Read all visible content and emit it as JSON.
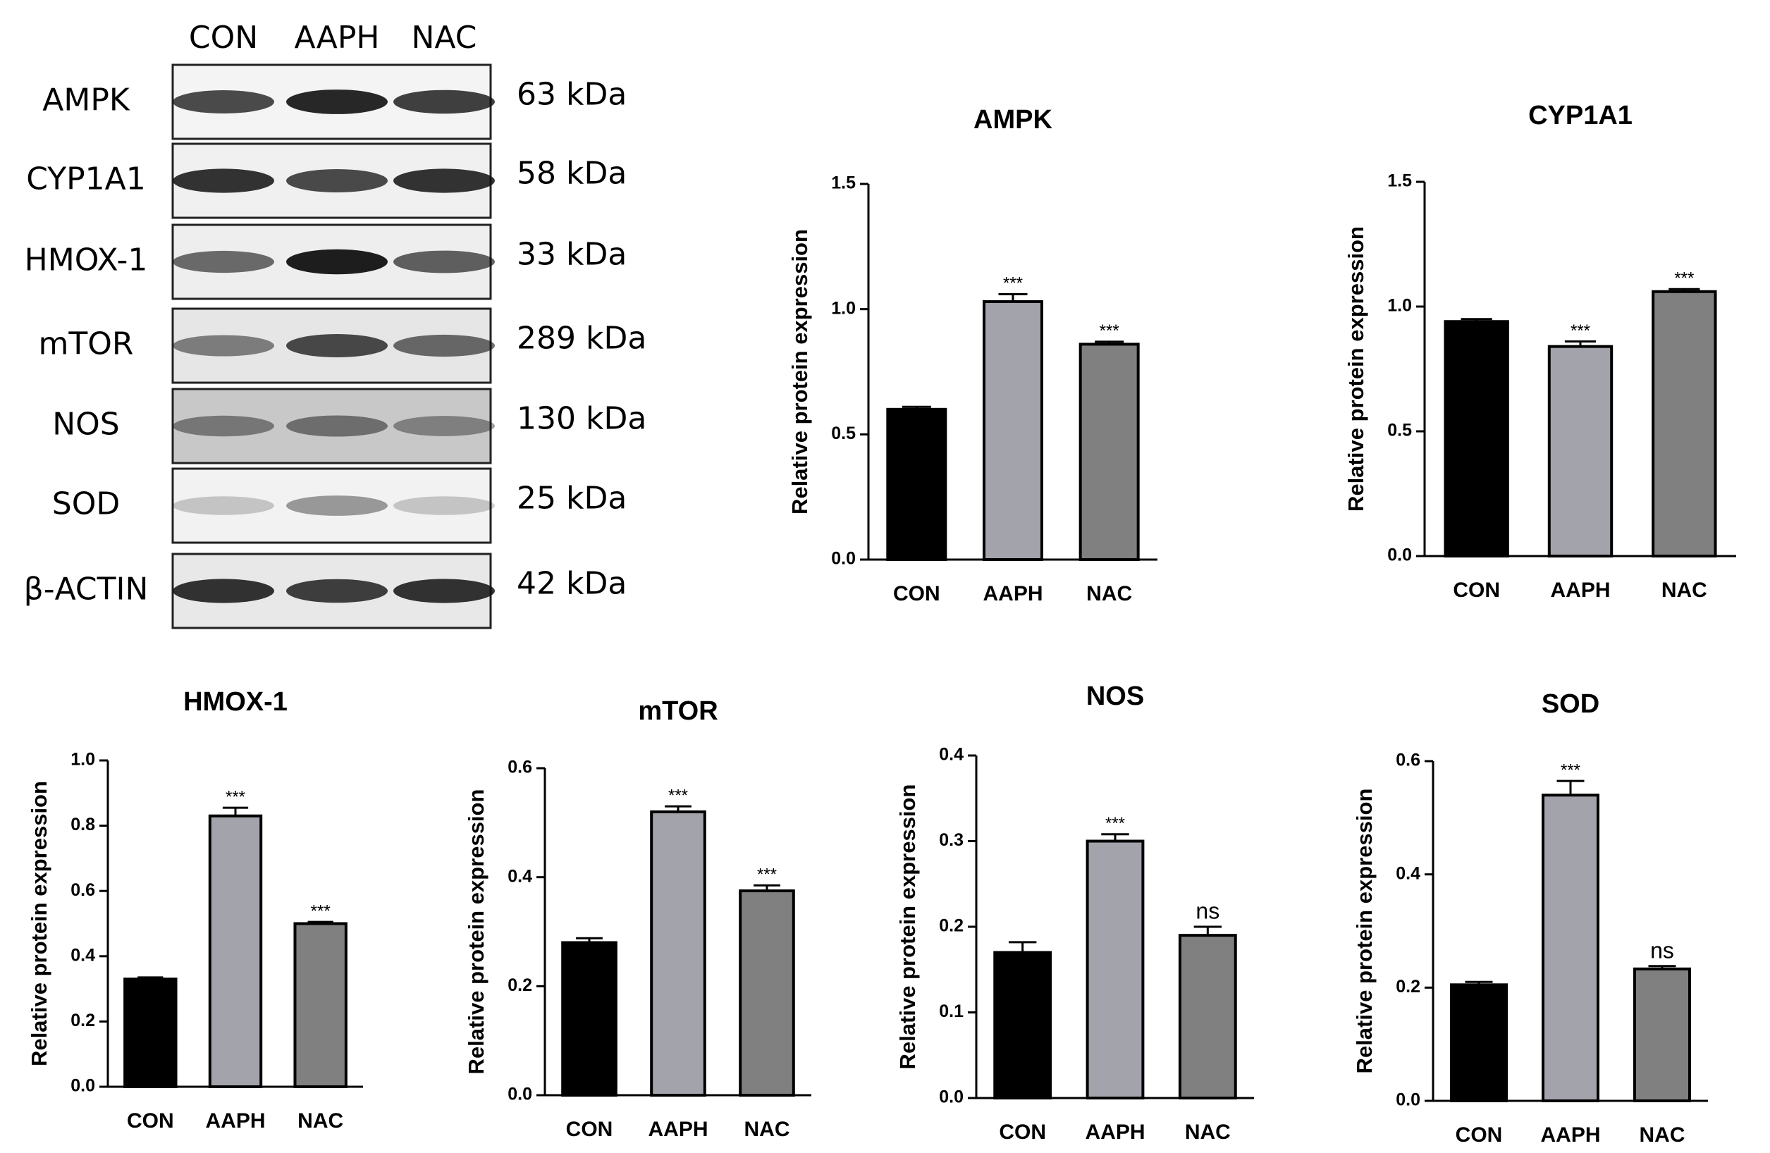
{
  "blot": {
    "lanes": [
      "CON",
      "AAPH",
      "NAC"
    ],
    "rows": [
      {
        "label": "AMPK",
        "size": "63 kDa"
      },
      {
        "label": "CYP1A1",
        "size": "58 kDa"
      },
      {
        "label": "HMOX-1",
        "size": "33 kDa"
      },
      {
        "label": "mTOR",
        "size": "289 kDa"
      },
      {
        "label": "NOS",
        "size": "130 kDa"
      },
      {
        "label": "SOD",
        "size": "25 kDa"
      },
      {
        "label": "β-ACTIN",
        "size": "42 kDa"
      }
    ]
  },
  "chart_data": [
    {
      "type": "bar",
      "title": "AMPK",
      "y_label": "Relative protein expression",
      "categories": [
        "CON",
        "AAPH",
        "NAC"
      ],
      "colors": [
        "#000000",
        "#a3a3ab",
        "#808080"
      ],
      "values": [
        0.6,
        1.03,
        0.86
      ],
      "errors": [
        0.01,
        0.03,
        0.01
      ],
      "significance": [
        null,
        "***",
        "***"
      ],
      "ylim": [
        0,
        1.5
      ],
      "yticks": [
        {
          "value": 0,
          "label": "0.0"
        },
        0.5,
        {
          "value": 1,
          "label": "1.0"
        },
        1.5
      ]
    },
    {
      "type": "bar",
      "title": "CYP1A1",
      "y_label": "Relative protein expression",
      "categories": [
        "CON",
        "AAPH",
        "NAC"
      ],
      "colors": [
        "#000000",
        "#a3a3ab",
        "#808080"
      ],
      "values": [
        0.94,
        0.84,
        1.06
      ],
      "errors": [
        0.01,
        0.02,
        0.01
      ],
      "significance": [
        null,
        "***",
        "***"
      ],
      "ylim": [
        0,
        1.5
      ],
      "yticks": [
        {
          "value": 0,
          "label": "0.0"
        },
        0.5,
        {
          "value": 1,
          "label": "1.0"
        },
        1.5
      ]
    },
    {
      "type": "bar",
      "title": "HMOX-1",
      "y_label": "Relative protein expression",
      "categories": [
        "CON",
        "AAPH",
        "NAC"
      ],
      "colors": [
        "#000000",
        "#a3a3ab",
        "#808080"
      ],
      "values": [
        0.33,
        0.83,
        0.5
      ],
      "errors": [
        0.005,
        0.025,
        0.005
      ],
      "significance": [
        null,
        "***",
        "***"
      ],
      "ylim": [
        0,
        1
      ],
      "yticks": [
        {
          "value": 0,
          "label": "0.0"
        },
        0.2,
        0.4,
        0.6,
        0.8,
        {
          "value": 1,
          "label": "1.0"
        }
      ]
    },
    {
      "type": "bar",
      "title": "mTOR",
      "y_label": "Relative protein expression",
      "categories": [
        "CON",
        "AAPH",
        "NAC"
      ],
      "colors": [
        "#000000",
        "#a3a3ab",
        "#808080"
      ],
      "values": [
        0.28,
        0.52,
        0.375
      ],
      "errors": [
        0.008,
        0.01,
        0.01
      ],
      "significance": [
        null,
        "***",
        "***"
      ],
      "ylim": [
        0,
        0.6
      ],
      "yticks": [
        {
          "value": 0,
          "label": "0.0"
        },
        0.2,
        0.4,
        0.6
      ]
    },
    {
      "type": "bar",
      "title": "NOS",
      "y_label": "Relative protein expression",
      "categories": [
        "CON",
        "AAPH",
        "NAC"
      ],
      "colors": [
        "#000000",
        "#a3a3ab",
        "#808080"
      ],
      "values": [
        0.17,
        0.3,
        0.19
      ],
      "errors": [
        0.012,
        0.008,
        0.01
      ],
      "significance": [
        null,
        "***",
        "ns"
      ],
      "ylim": [
        0,
        0.4
      ],
      "yticks": [
        {
          "value": 0,
          "label": "0.0"
        },
        0.1,
        0.2,
        0.3,
        0.4
      ]
    },
    {
      "type": "bar",
      "title": "SOD",
      "y_label": "Relative protein expression",
      "categories": [
        "CON",
        "AAPH",
        "NAC"
      ],
      "colors": [
        "#000000",
        "#a3a3ab",
        "#808080"
      ],
      "values": [
        0.205,
        0.54,
        0.233
      ],
      "errors": [
        0.005,
        0.025,
        0.005
      ],
      "significance": [
        null,
        "***",
        "ns"
      ],
      "ylim": [
        0,
        0.6
      ],
      "yticks": [
        {
          "value": 0,
          "label": "0.0"
        },
        0.2,
        0.4,
        0.6
      ]
    }
  ]
}
